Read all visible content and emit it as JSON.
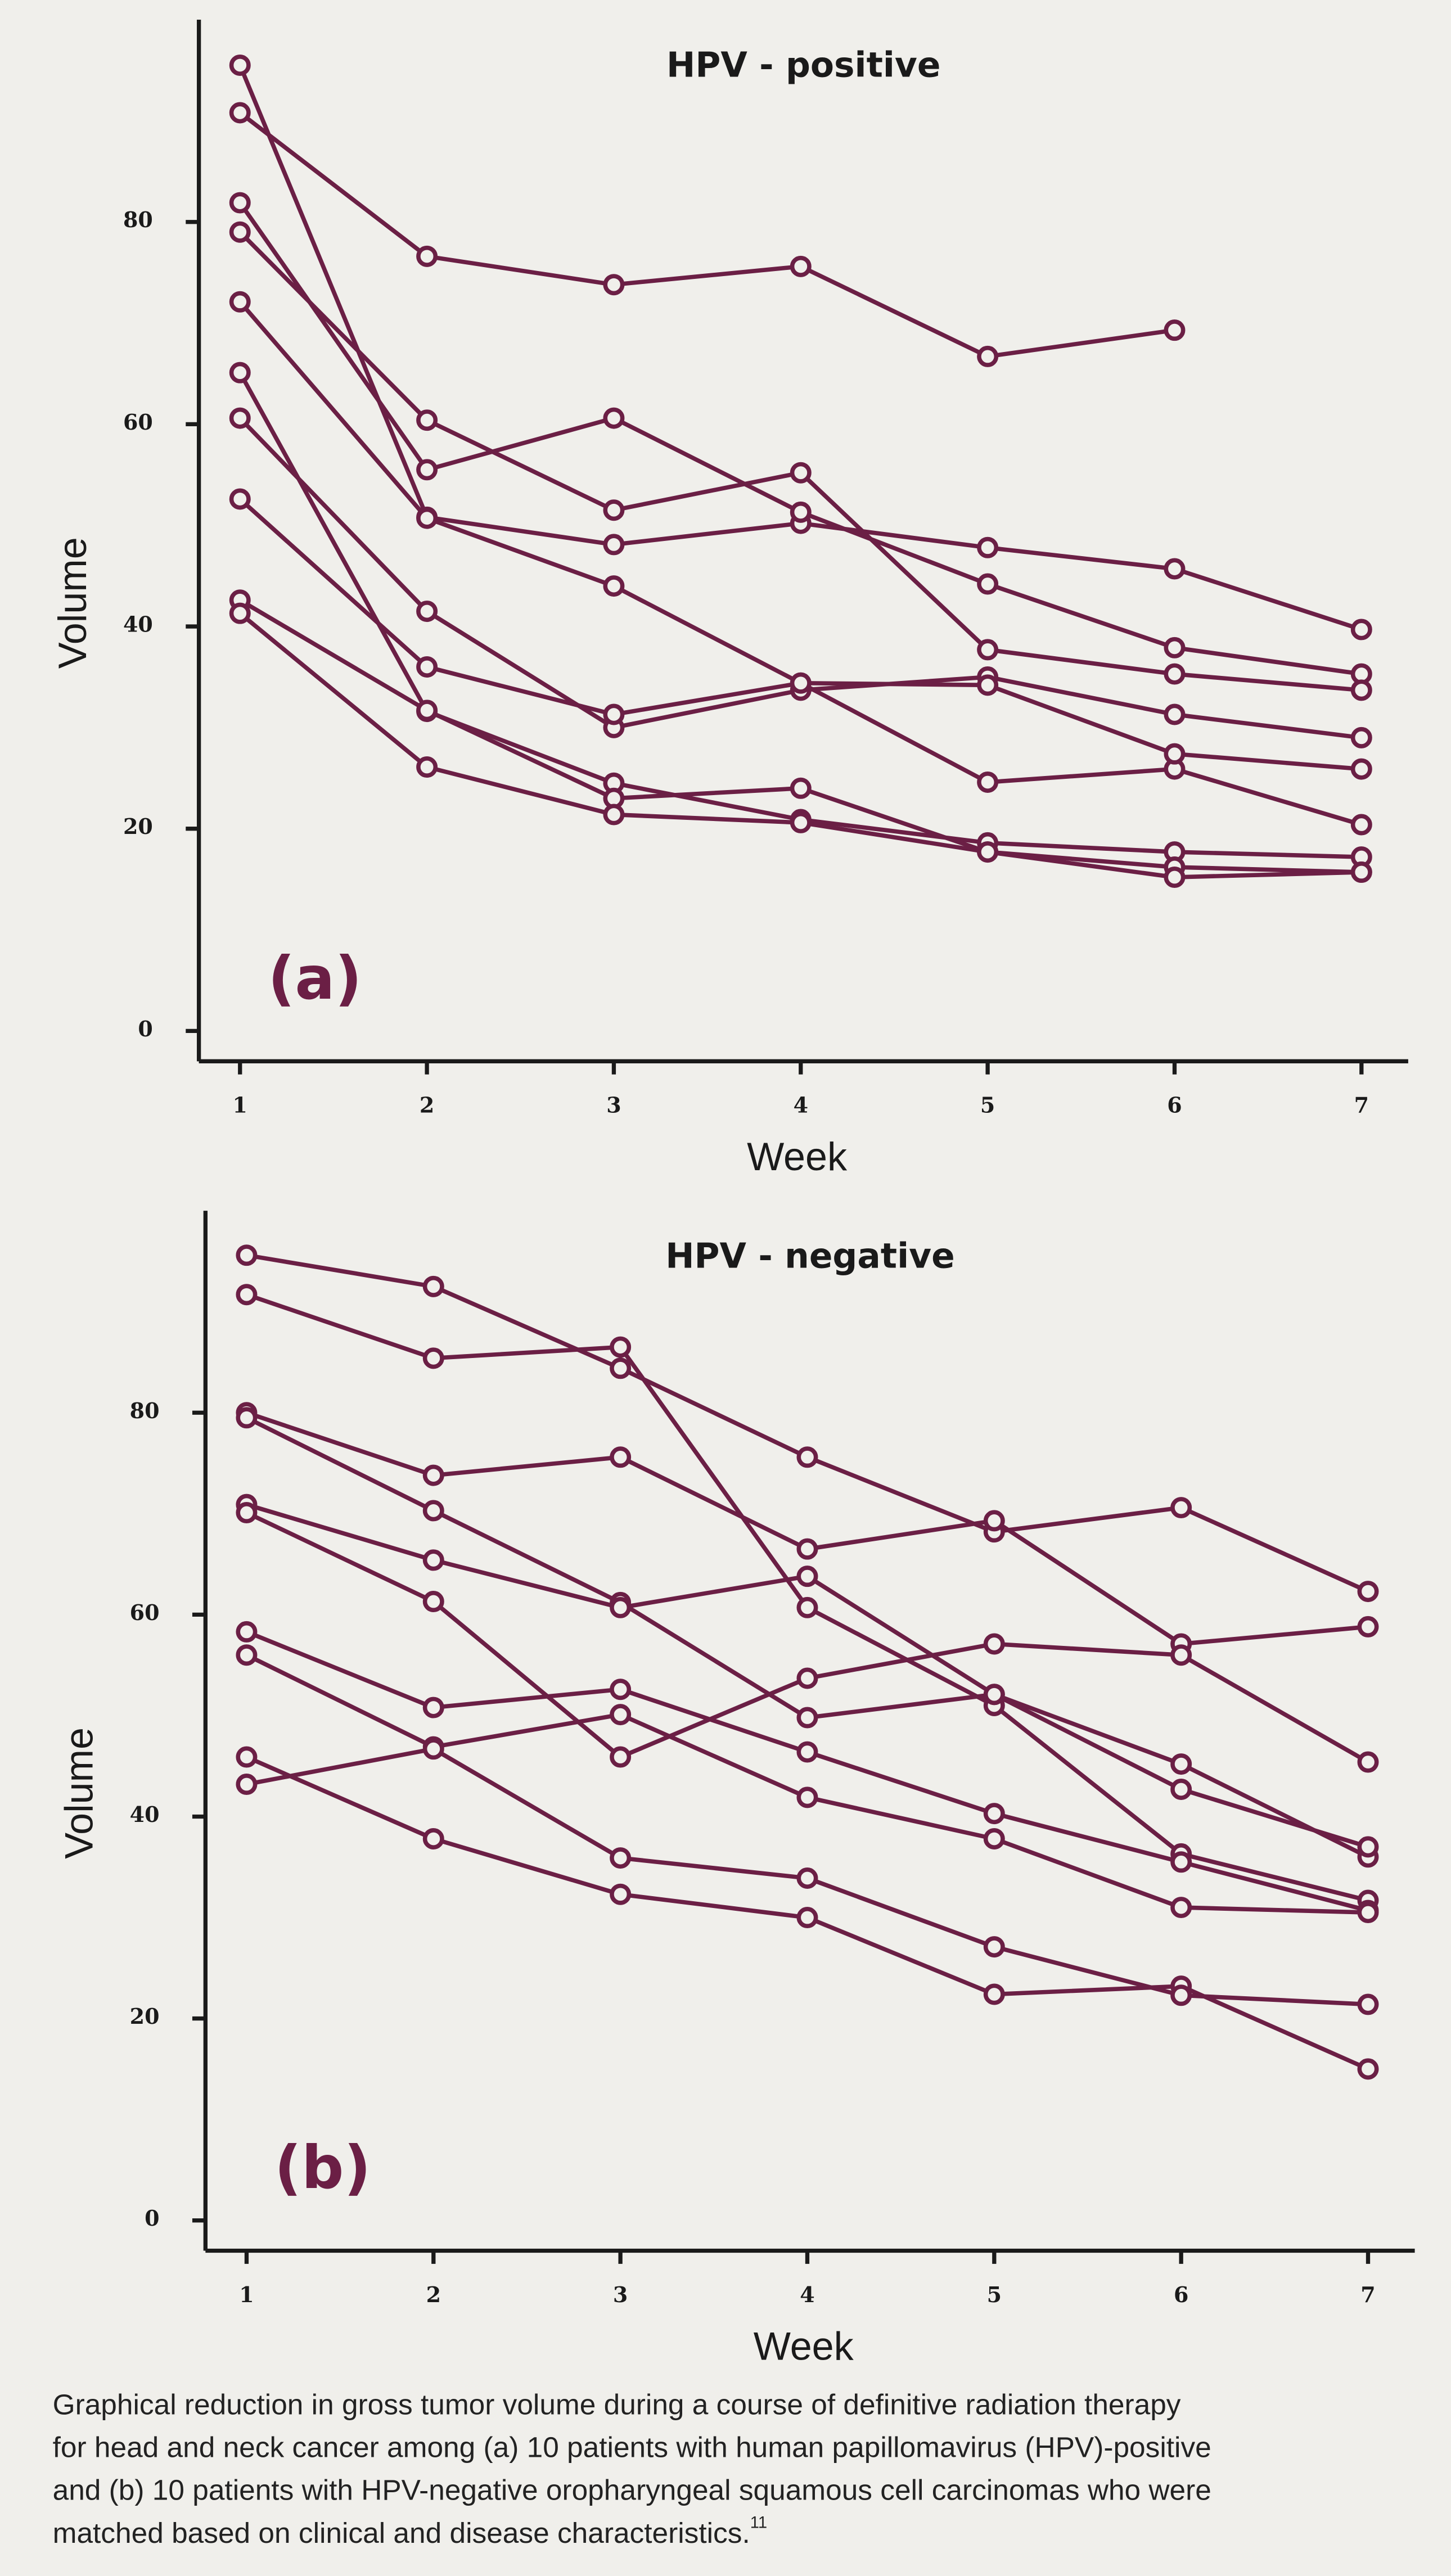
{
  "chart_data": [
    {
      "type": "line",
      "title": "HPV - positive",
      "panel_label": "(a)",
      "x_label": "Week",
      "y_label": "Volume",
      "x": [
        1,
        2,
        3,
        4,
        5,
        6,
        7
      ],
      "xlim": [
        0.78,
        7.25
      ],
      "xticks": [
        1,
        2,
        3,
        4,
        5,
        6,
        7
      ],
      "ylim": [
        -3,
        100
      ],
      "yticks": [
        0,
        20,
        40,
        60,
        80
      ],
      "series": [
        {
          "color": "#6b1f45",
          "values": [
            90.8,
            76.6,
            73.8,
            75.6,
            66.7,
            69.3,
            null
          ]
        },
        {
          "color": "#6b1f45",
          "values": [
            95.5,
            50.8,
            48.1,
            50.2,
            47.8,
            45.7,
            39.7
          ]
        },
        {
          "color": "#6b1f45",
          "values": [
            81.9,
            55.5,
            60.6,
            51.3,
            44.2,
            37.9,
            35.3
          ]
        },
        {
          "color": "#6b1f45",
          "values": [
            79.0,
            60.4,
            51.5,
            55.2,
            37.7,
            35.3,
            33.7
          ]
        },
        {
          "color": "#6b1f45",
          "values": [
            72.1,
            50.7,
            44.0,
            34.4,
            24.6,
            25.9,
            20.4
          ]
        },
        {
          "color": "#6b1f45",
          "values": [
            65.1,
            31.6,
            24.5,
            20.9,
            18.6,
            17.7,
            17.2
          ]
        },
        {
          "color": "#6b1f45",
          "values": [
            60.6,
            41.5,
            30.0,
            33.7,
            35.0,
            31.3,
            29.0
          ]
        },
        {
          "color": "#6b1f45",
          "values": [
            52.6,
            36.0,
            31.3,
            34.4,
            34.2,
            27.4,
            25.9
          ]
        },
        {
          "color": "#6b1f45",
          "values": [
            42.6,
            31.7,
            23.0,
            24.0,
            17.7,
            16.2,
            15.7
          ]
        },
        {
          "color": "#6b1f45",
          "values": [
            41.3,
            26.1,
            21.4,
            20.6,
            17.7,
            15.2,
            15.7
          ]
        }
      ]
    },
    {
      "type": "line",
      "title": "HPV - negative",
      "panel_label": "(b)",
      "x_label": "Week",
      "y_label": "Volume",
      "x": [
        1,
        2,
        3,
        4,
        5,
        6,
        7
      ],
      "xlim": [
        0.78,
        7.25
      ],
      "xticks": [
        1,
        2,
        3,
        4,
        5,
        6,
        7
      ],
      "ylim": [
        -3,
        100
      ],
      "yticks": [
        0,
        20,
        40,
        60,
        80
      ],
      "series": [
        {
          "color": "#6b1f45",
          "values": [
            95.6,
            92.5,
            84.4,
            75.6,
            68.2,
            70.6,
            62.3
          ]
        },
        {
          "color": "#6b1f45",
          "values": [
            91.7,
            85.4,
            86.5,
            60.7,
            51.0,
            36.3,
            31.7
          ]
        },
        {
          "color": "#6b1f45",
          "values": [
            80.0,
            73.8,
            75.6,
            66.5,
            69.3,
            57.1,
            58.8
          ]
        },
        {
          "color": "#6b1f45",
          "values": [
            79.5,
            70.3,
            61.2,
            49.8,
            52.1,
            45.2,
            36.0
          ]
        },
        {
          "color": "#6b1f45",
          "values": [
            70.9,
            65.4,
            60.7,
            63.8,
            52.1,
            42.7,
            37.0
          ]
        },
        {
          "color": "#6b1f45",
          "values": [
            70.1,
            61.3,
            45.9,
            53.7,
            57.1,
            56.0,
            45.4
          ]
        },
        {
          "color": "#6b1f45",
          "values": [
            58.3,
            50.8,
            52.6,
            46.4,
            40.3,
            35.5,
            30.7
          ]
        },
        {
          "color": "#6b1f45",
          "values": [
            56.0,
            46.9,
            50.1,
            41.9,
            37.8,
            31.0,
            30.5
          ]
        },
        {
          "color": "#6b1f45",
          "values": [
            45.9,
            37.8,
            32.3,
            30.0,
            22.4,
            23.2,
            15.0
          ]
        },
        {
          "color": "#6b1f45",
          "values": [
            43.2,
            46.7,
            35.9,
            33.9,
            27.1,
            22.3,
            21.4
          ]
        }
      ]
    }
  ],
  "caption": {
    "lines": [
      "Graphical reduction in gross tumor volume during a course of definitive radiation therapy",
      "for head and neck cancer among (a) 10 patients with human papillomavirus (HPV)-positive",
      "and (b) 10 patients with HPV-negative oropharyngeal squamous cell carcinomas who were",
      "matched based on clinical and disease characteristics."
    ],
    "reference": "11"
  }
}
